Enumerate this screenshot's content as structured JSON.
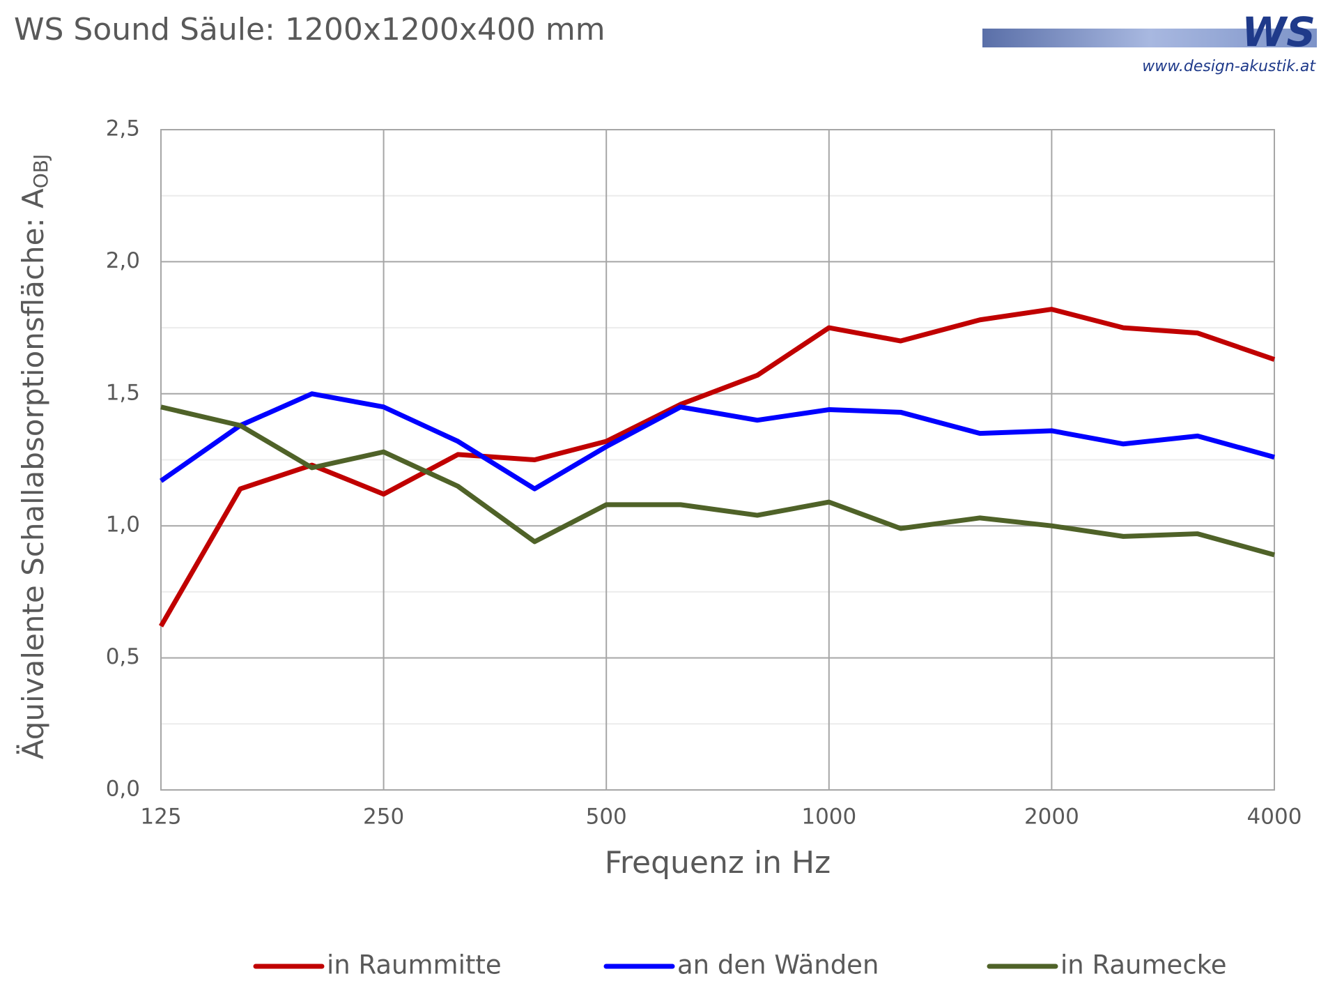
{
  "chart_data": {
    "type": "line",
    "title": "WS Sound Säule: 1200x1200x400 mm",
    "logo": "WS",
    "logo_url": "www.design-akustik.at",
    "xlabel": "Frequenz in Hz",
    "ylabel": "Äquivalente Schallabsorptionsfläche: A",
    "ylabel_subscript": "OBJ",
    "xscale": "log",
    "x": [
      125,
      160,
      200,
      250,
      315,
      400,
      500,
      630,
      800,
      1000,
      1250,
      1600,
      2000,
      2500,
      3150,
      4000
    ],
    "xlim": [
      125,
      4000
    ],
    "xticks": [
      125,
      250,
      500,
      1000,
      2000,
      4000
    ],
    "ylim": [
      0,
      2.5
    ],
    "yticks": [
      {
        "value": 0,
        "label": "0,0"
      },
      {
        "value": 0.5,
        "label": "0,5"
      },
      {
        "value": 1,
        "label": "1,0"
      },
      {
        "value": 1.5,
        "label": "1,5"
      },
      {
        "value": 2,
        "label": "2,0"
      },
      {
        "value": 2.5,
        "label": "2,5"
      }
    ],
    "yminor_ticks": [
      0.25,
      0.75,
      1.25,
      1.75,
      2.25
    ],
    "grid": true,
    "legend": "bottom",
    "series": [
      {
        "name": "in Raummitte",
        "color": "#c00000",
        "values": [
          0.62,
          1.14,
          1.23,
          1.12,
          1.27,
          1.25,
          1.32,
          1.46,
          1.57,
          1.75,
          1.7,
          1.78,
          1.82,
          1.75,
          1.73,
          1.63
        ]
      },
      {
        "name": "an den Wänden",
        "color": "#0000ff",
        "values": [
          1.17,
          1.38,
          1.5,
          1.45,
          1.32,
          1.14,
          1.3,
          1.45,
          1.4,
          1.44,
          1.43,
          1.35,
          1.36,
          1.31,
          1.34,
          1.26
        ]
      },
      {
        "name": "in Raumecke",
        "color": "#4f6228",
        "values": [
          1.45,
          1.38,
          1.22,
          1.28,
          1.15,
          0.94,
          1.08,
          1.08,
          1.04,
          1.09,
          0.99,
          1.03,
          1.0,
          0.96,
          0.97,
          0.89
        ]
      }
    ]
  }
}
